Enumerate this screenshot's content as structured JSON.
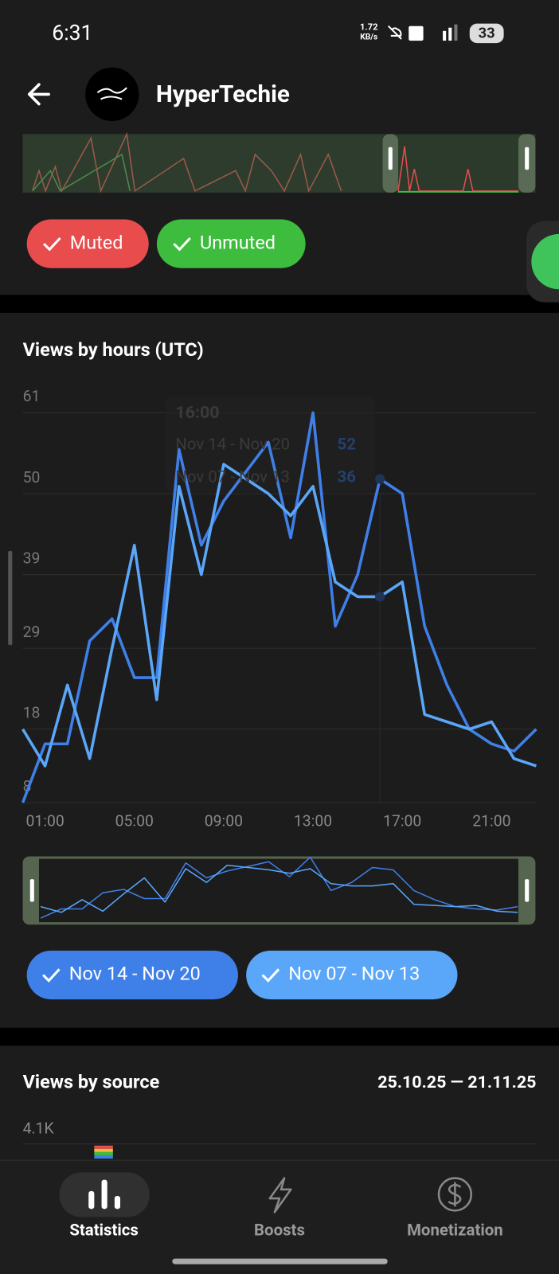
{
  "status_bar": {
    "time": "6:31",
    "network_speed": "1.72",
    "network_unit": "KB/s",
    "battery": "33"
  },
  "header": {
    "title": "HyperTechie"
  },
  "filters": [
    "Muted",
    "Unmuted"
  ],
  "chart_data": {
    "type": "line",
    "title": "Views by hours (UTC)",
    "categories": [
      null,
      "01:00",
      null,
      null,
      null,
      "05:00",
      null,
      null,
      null,
      "09:00",
      null,
      null,
      null,
      "13:00",
      null,
      null,
      null,
      "17:00",
      null,
      null,
      null,
      "21:00",
      null,
      null
    ],
    "series": [
      {
        "name": "Nov 14 - Nov 20",
        "color": "#3f7fe8",
        "values": [
          8,
          16,
          16,
          30,
          33,
          25,
          25,
          56,
          43,
          49,
          53,
          57,
          44,
          61,
          32,
          39,
          52,
          50,
          32,
          24,
          18,
          16,
          15,
          18
        ]
      },
      {
        "name": "Nov 07 - Nov 13",
        "color": "#5aa6f8",
        "values": [
          18,
          13,
          24,
          14,
          29,
          43,
          22,
          51,
          39,
          54,
          52,
          50,
          47,
          51,
          38,
          36,
          36,
          38,
          20,
          19,
          18,
          19,
          14,
          13
        ]
      }
    ],
    "ylim": [
      8,
      61
    ],
    "yticks": [
      8,
      18,
      29,
      39,
      50,
      61
    ],
    "grid": true,
    "tooltip": {
      "title": "16:00",
      "index": 16
    }
  },
  "source_section": {
    "title": "Views by source",
    "date_range": "25.10.25 — 21.11.25",
    "first_tick": "4.1K"
  },
  "nav": [
    "Statistics",
    "Boosts",
    "Monetization"
  ]
}
